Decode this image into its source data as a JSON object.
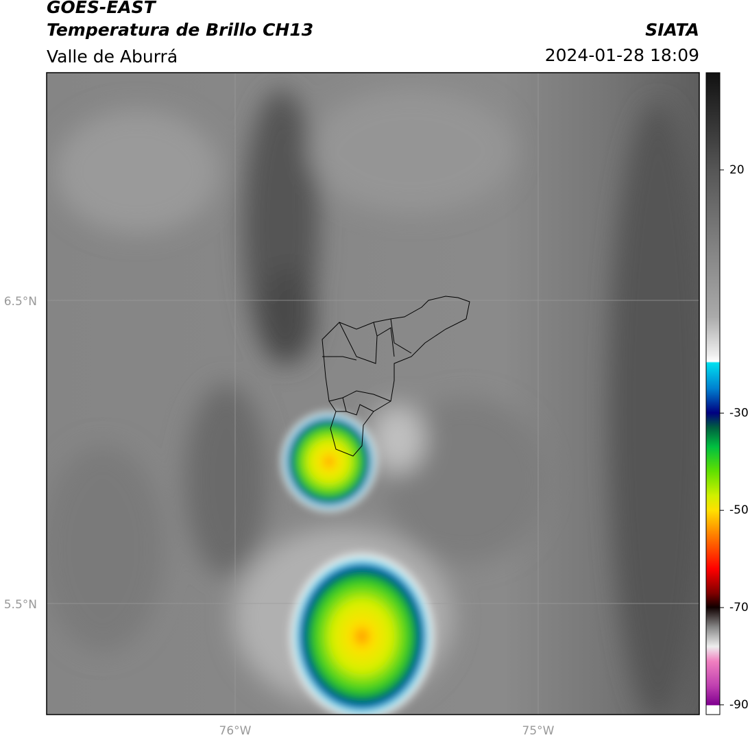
{
  "header": {
    "satellite": "GOES-EAST",
    "product": "Temperatura de Brillo CH13",
    "region": "Valle de Aburrá",
    "source": "SIATA",
    "datetime": "2024-01-28 18:09"
  },
  "map": {
    "lat_labels": [
      "6.5°N",
      "5.5°N"
    ],
    "lon_labels": [
      "76°W",
      "75°W"
    ]
  },
  "colorbar": {
    "clim": [
      -92,
      40
    ],
    "ticks": [
      20,
      -30,
      -50,
      -70,
      -90
    ]
  }
}
